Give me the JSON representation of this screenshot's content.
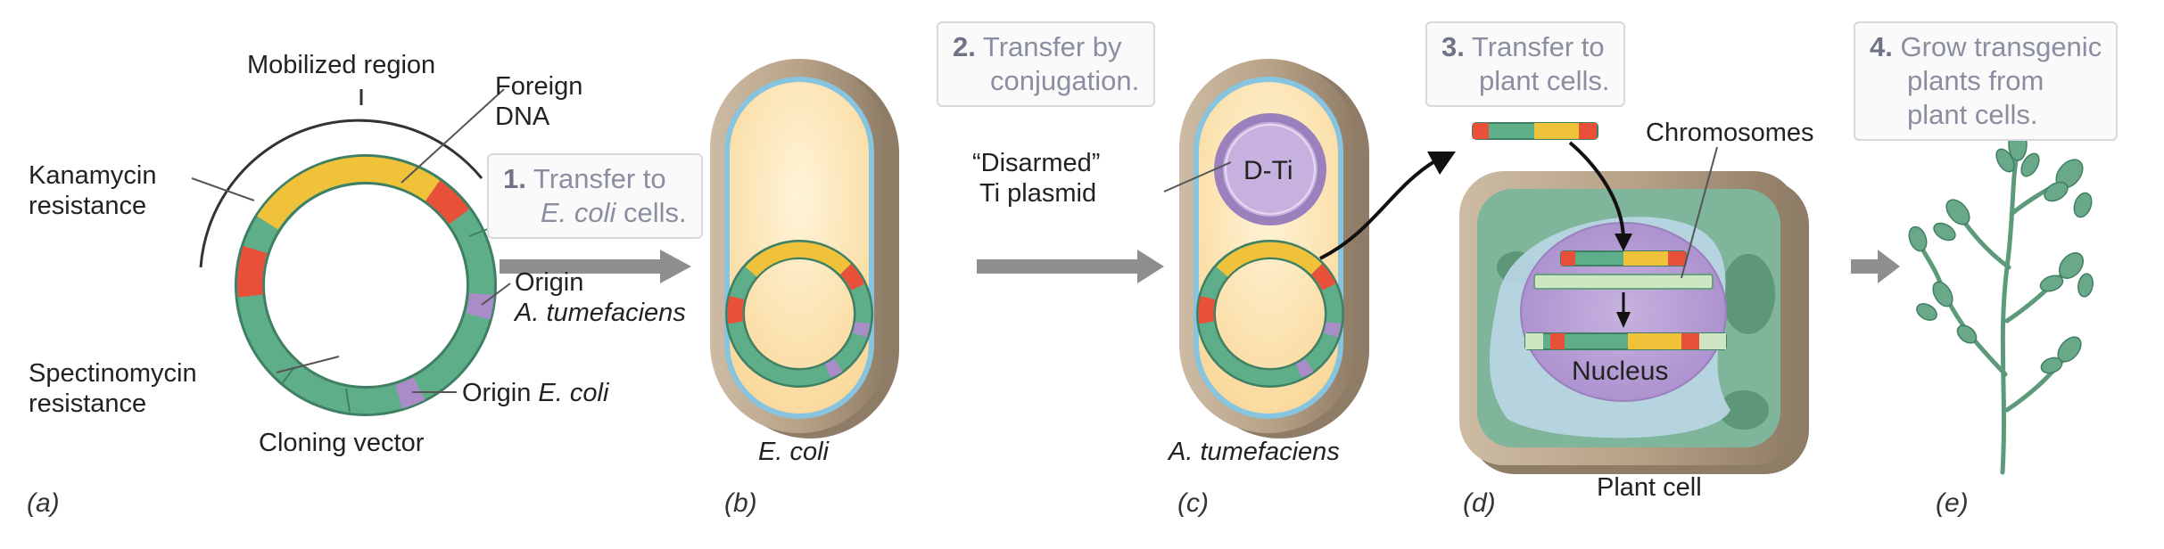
{
  "panels": {
    "a": {
      "letter": "(a)",
      "mobilized_region": "Mobilized region",
      "foreign_dna_1": "Foreign",
      "foreign_dna_2": "DNA",
      "kanamycin_1": "Kanamycin",
      "kanamycin_2": "resistance",
      "origin_agro_1": "Origin",
      "origin_agro_2": "A. tumefaciens",
      "spectinomycin_1": "Spectinomycin",
      "spectinomycin_2": "resistance",
      "origin_ecoli_prefix": "Origin",
      "origin_ecoli_species": "E. coli",
      "caption": "Cloning vector"
    },
    "b": {
      "letter": "(b)",
      "caption": "E. coli"
    },
    "c": {
      "letter": "(c)",
      "disarmed_1": "“Disarmed”",
      "disarmed_2": "Ti plasmid",
      "dti": "D-Ti",
      "caption": "A. tumefaciens"
    },
    "d": {
      "letter": "(d)",
      "chromosomes": "Chromosomes",
      "nucleus": "Nucleus",
      "caption": "Plant cell"
    },
    "e": {
      "letter": "(e)"
    }
  },
  "steps": [
    {
      "num": "1.",
      "line1": "Transfer to",
      "line2_species": "E. coli",
      "line2_rest": " cells."
    },
    {
      "num": "2.",
      "line1": "Transfer by",
      "line2": "conjugation."
    },
    {
      "num": "3.",
      "line1": "Transfer to",
      "line2": "plant cells."
    },
    {
      "num": "4.",
      "line1": "Grow transgenic",
      "line2": "plants from",
      "line3": "plant cells."
    }
  ],
  "colors": {
    "green": "#5fae8a",
    "yellow": "#f0c23a",
    "red": "#e8503a",
    "purple_marker": "#a98cc8",
    "cell_wall": "#b9a58d",
    "cell_inner": "#fde6b5",
    "membrane_blue": "#86c4e0",
    "plant_green": "#7fb59a",
    "nucleus": "#b49ad0",
    "arrow_gray": "#8e8e8e"
  }
}
